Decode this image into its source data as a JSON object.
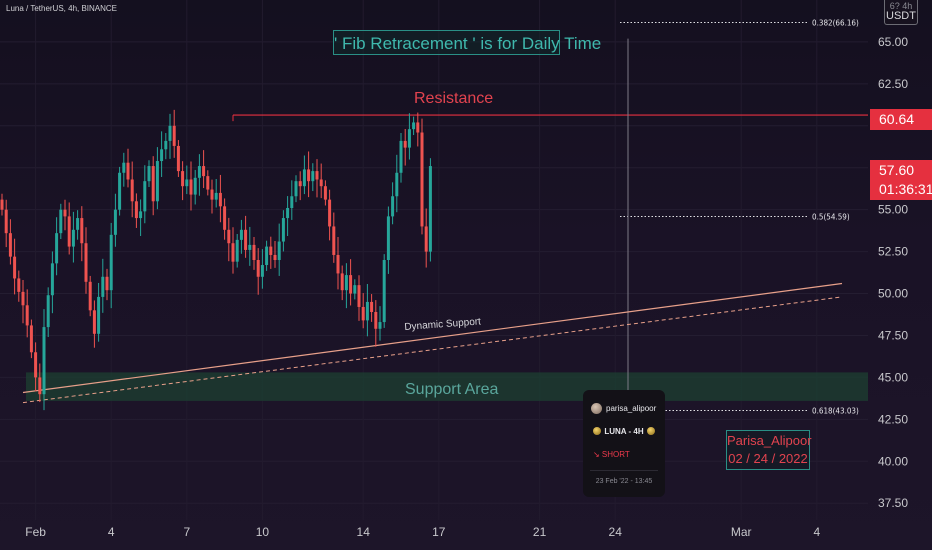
{
  "header": {
    "pair": "Luna / TetherUS, 4h, BINANCE"
  },
  "annotations": {
    "title": "' Fib Retracement ' is for Daily Time",
    "resistance": "Resistance",
    "support_area": "Support Area",
    "dynamic_support": "Dynamic Support",
    "author_line1": "Parisa_Alipoor",
    "author_line2": "02 / 24 / 2022"
  },
  "card": {
    "author": "parisa_alipoor",
    "symbol": "LUNA - 4H",
    "direction": "↘ SHORT",
    "timestamp": "23 Feb '22 - 13:45"
  },
  "axis_unit": {
    "top": "6? 4h",
    "bottom": "USDT"
  },
  "price_tags": {
    "resistance_price": "60.64",
    "last_price": "57.60",
    "countdown": "01:36:31"
  },
  "fib_labels": [
    {
      "label": "0.382(66.16)",
      "price": 66.16
    },
    {
      "label": "0.5(54.59)",
      "price": 54.59
    },
    {
      "label": "0.618(43.03)",
      "price": 43.03
    }
  ],
  "colors": {
    "up": "#26a69a",
    "down": "#ef5350",
    "resistance": "#e5303f",
    "support_zone": "#1c3b30",
    "trendline": "#e8a08a",
    "teal_border": "#2a8f86"
  },
  "chart_data": {
    "type": "candlestick",
    "y_unit": "USDT",
    "ylim": [
      36.5,
      67.5
    ],
    "yticks": [
      37.5,
      40.0,
      42.5,
      45.0,
      47.5,
      50.0,
      52.5,
      55.0,
      57.5,
      60.0,
      62.5,
      65.0
    ],
    "ytick_labels": [
      "37.50",
      "40.00",
      "42.50",
      "45.00",
      "47.50",
      "50.00",
      "52.50",
      "55.00",
      "57.50",
      "60.00",
      "62.50",
      "65.00"
    ],
    "xticks": [
      {
        "label": "Feb",
        "bar": 8
      },
      {
        "label": "4",
        "bar": 26
      },
      {
        "label": "7",
        "bar": 44
      },
      {
        "label": "10",
        "bar": 62
      },
      {
        "label": "14",
        "bar": 86
      },
      {
        "label": "17",
        "bar": 104
      },
      {
        "label": "21",
        "bar": 128
      },
      {
        "label": "24",
        "bar": 146
      },
      {
        "label": "Mar",
        "bar": 176
      },
      {
        "label": "4",
        "bar": 194
      }
    ],
    "resistance": 60.64,
    "support_zone": [
      43.6,
      45.3
    ],
    "dynamic_support": [
      {
        "bar": 5,
        "price": 44.1
      },
      {
        "bar": 200,
        "price": 50.6
      }
    ],
    "dynamic_support_dashed": [
      {
        "bar": 5,
        "price": 43.5
      },
      {
        "bar": 200,
        "price": 49.8
      }
    ],
    "fib_levels": [
      66.16,
      54.59,
      43.03
    ],
    "last_price": 57.6,
    "closes": [
      55.0,
      53.6,
      52.2,
      50.9,
      50.1,
      49.3,
      48.1,
      46.5,
      45.0,
      44.0,
      48.0,
      49.9,
      51.8,
      53.6,
      55.0,
      54.6,
      52.8,
      53.8,
      54.5,
      53.0,
      50.7,
      49.0,
      47.6,
      49.8,
      51.0,
      50.2,
      53.5,
      55.0,
      57.2,
      57.8,
      56.8,
      55.5,
      54.5,
      54.9,
      56.7,
      57.6,
      55.5,
      57.9,
      58.6,
      59.1,
      60.0,
      58.8,
      57.3,
      56.4,
      56.8,
      55.9,
      56.9,
      57.6,
      57.0,
      56.2,
      55.6,
      56.0,
      55.2,
      53.8,
      53.0,
      51.9,
      53.2,
      53.8,
      52.6,
      52.9,
      52.0,
      51.0,
      51.7,
      52.8,
      52.3,
      52.0,
      53.1,
      54.5,
      55.1,
      55.8,
      56.7,
      56.4,
      57.4,
      56.7,
      57.3,
      56.8,
      56.4,
      55.6,
      54.0,
      52.3,
      51.2,
      50.2,
      51.1,
      50.0,
      50.5,
      49.2,
      48.4,
      49.5,
      48.9,
      47.9,
      48.3,
      52.0,
      54.6,
      55.8,
      57.2,
      59.1,
      58.7,
      59.8,
      60.2,
      59.6,
      54.0,
      52.5,
      57.6
    ]
  }
}
